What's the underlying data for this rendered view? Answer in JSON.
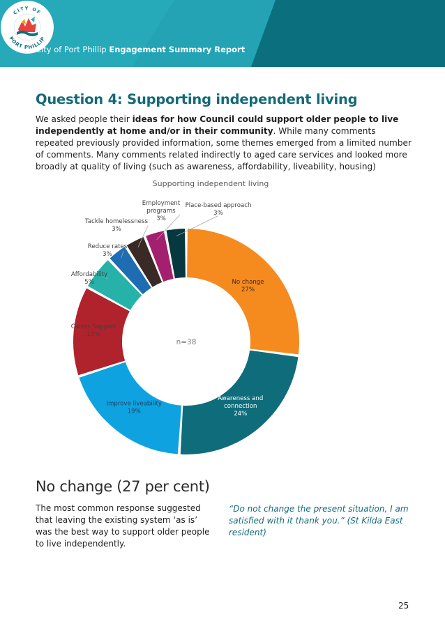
{
  "header": {
    "org": "City of Port Phillip",
    "report": "Engagement Summary Report",
    "logo_text_top": "CITY OF",
    "logo_text_bottom": "PORT PHILLIP",
    "colors": {
      "teal_dark": "#0b6f7d",
      "teal_light": "#23a3b4"
    }
  },
  "section": {
    "title": "Question 4: Supporting independent living",
    "intro_pre": "We asked people their ",
    "intro_bold": "ideas for how Council could support older people to live independently at home and/or in their community",
    "intro_post": ". While many comments repeated previously provided information, some themes emerged from a limited number of comments. Many comments related indirectly to aged care services and looked more broadly at quality of living (such as awareness, affordability, liveability, housing)"
  },
  "chart_data": {
    "type": "pie",
    "donut": true,
    "title": "Supporting independent living",
    "center_label": "n=38",
    "slices": [
      {
        "label": "No change",
        "value": 27,
        "pct_label": "27%",
        "color": "#f58a1f"
      },
      {
        "label": "Awareness and connection",
        "value": 24,
        "pct_label": "24%",
        "color": "#0f6d7b"
      },
      {
        "label": "Improve liveability",
        "value": 19,
        "pct_label": "19%",
        "color": "#0ea3e0"
      },
      {
        "label": "Carers Support",
        "value": 13,
        "pct_label": "13%",
        "color": "#b0222c"
      },
      {
        "label": "Affordability",
        "value": 5,
        "pct_label": "5%",
        "color": "#26b2a8"
      },
      {
        "label": "Reduce rates",
        "value": 3,
        "pct_label": "3%",
        "color": "#1e6db3"
      },
      {
        "label": "Tackle homelessness",
        "value": 3,
        "pct_label": "3%",
        "color": "#3a2a25"
      },
      {
        "label": "Employment programs",
        "value": 3,
        "pct_label": "3%",
        "color": "#a3206e"
      },
      {
        "label": "Place-based approach",
        "value": 3,
        "pct_label": "3%",
        "color": "#07373f"
      }
    ]
  },
  "subsection": {
    "title": "No change (27 per cent)",
    "body": "The most common response suggested that leaving the existing system ‘as is’ was the best way to support older people to live independently.",
    "quote": "“Do not change the present situation, I am satisfied with it thank you.” (St Kilda East resident)"
  },
  "page_number": "25"
}
